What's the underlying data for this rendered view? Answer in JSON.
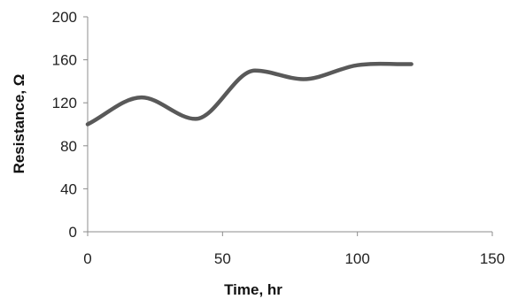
{
  "chart_data": {
    "type": "line",
    "title": "",
    "xlabel": "Time, hr",
    "ylabel": "Resistance, Ω",
    "xlim": [
      0,
      150
    ],
    "ylim": [
      0,
      200
    ],
    "x_ticks": [
      0,
      50,
      100,
      150
    ],
    "x_tick_labels": [
      "0",
      "50",
      "100",
      "150"
    ],
    "y_ticks": [
      0,
      40,
      80,
      120,
      160,
      200
    ],
    "y_tick_labels": [
      "0",
      "40",
      "80",
      "120",
      "160",
      "200"
    ],
    "grid": false,
    "legend": "none",
    "smooth": true,
    "series": [
      {
        "color": "#595959",
        "x": [
          0,
          20,
          40,
          62,
          80,
          100,
          120
        ],
        "y": [
          100,
          125,
          105,
          150,
          142,
          155,
          156
        ]
      }
    ]
  }
}
